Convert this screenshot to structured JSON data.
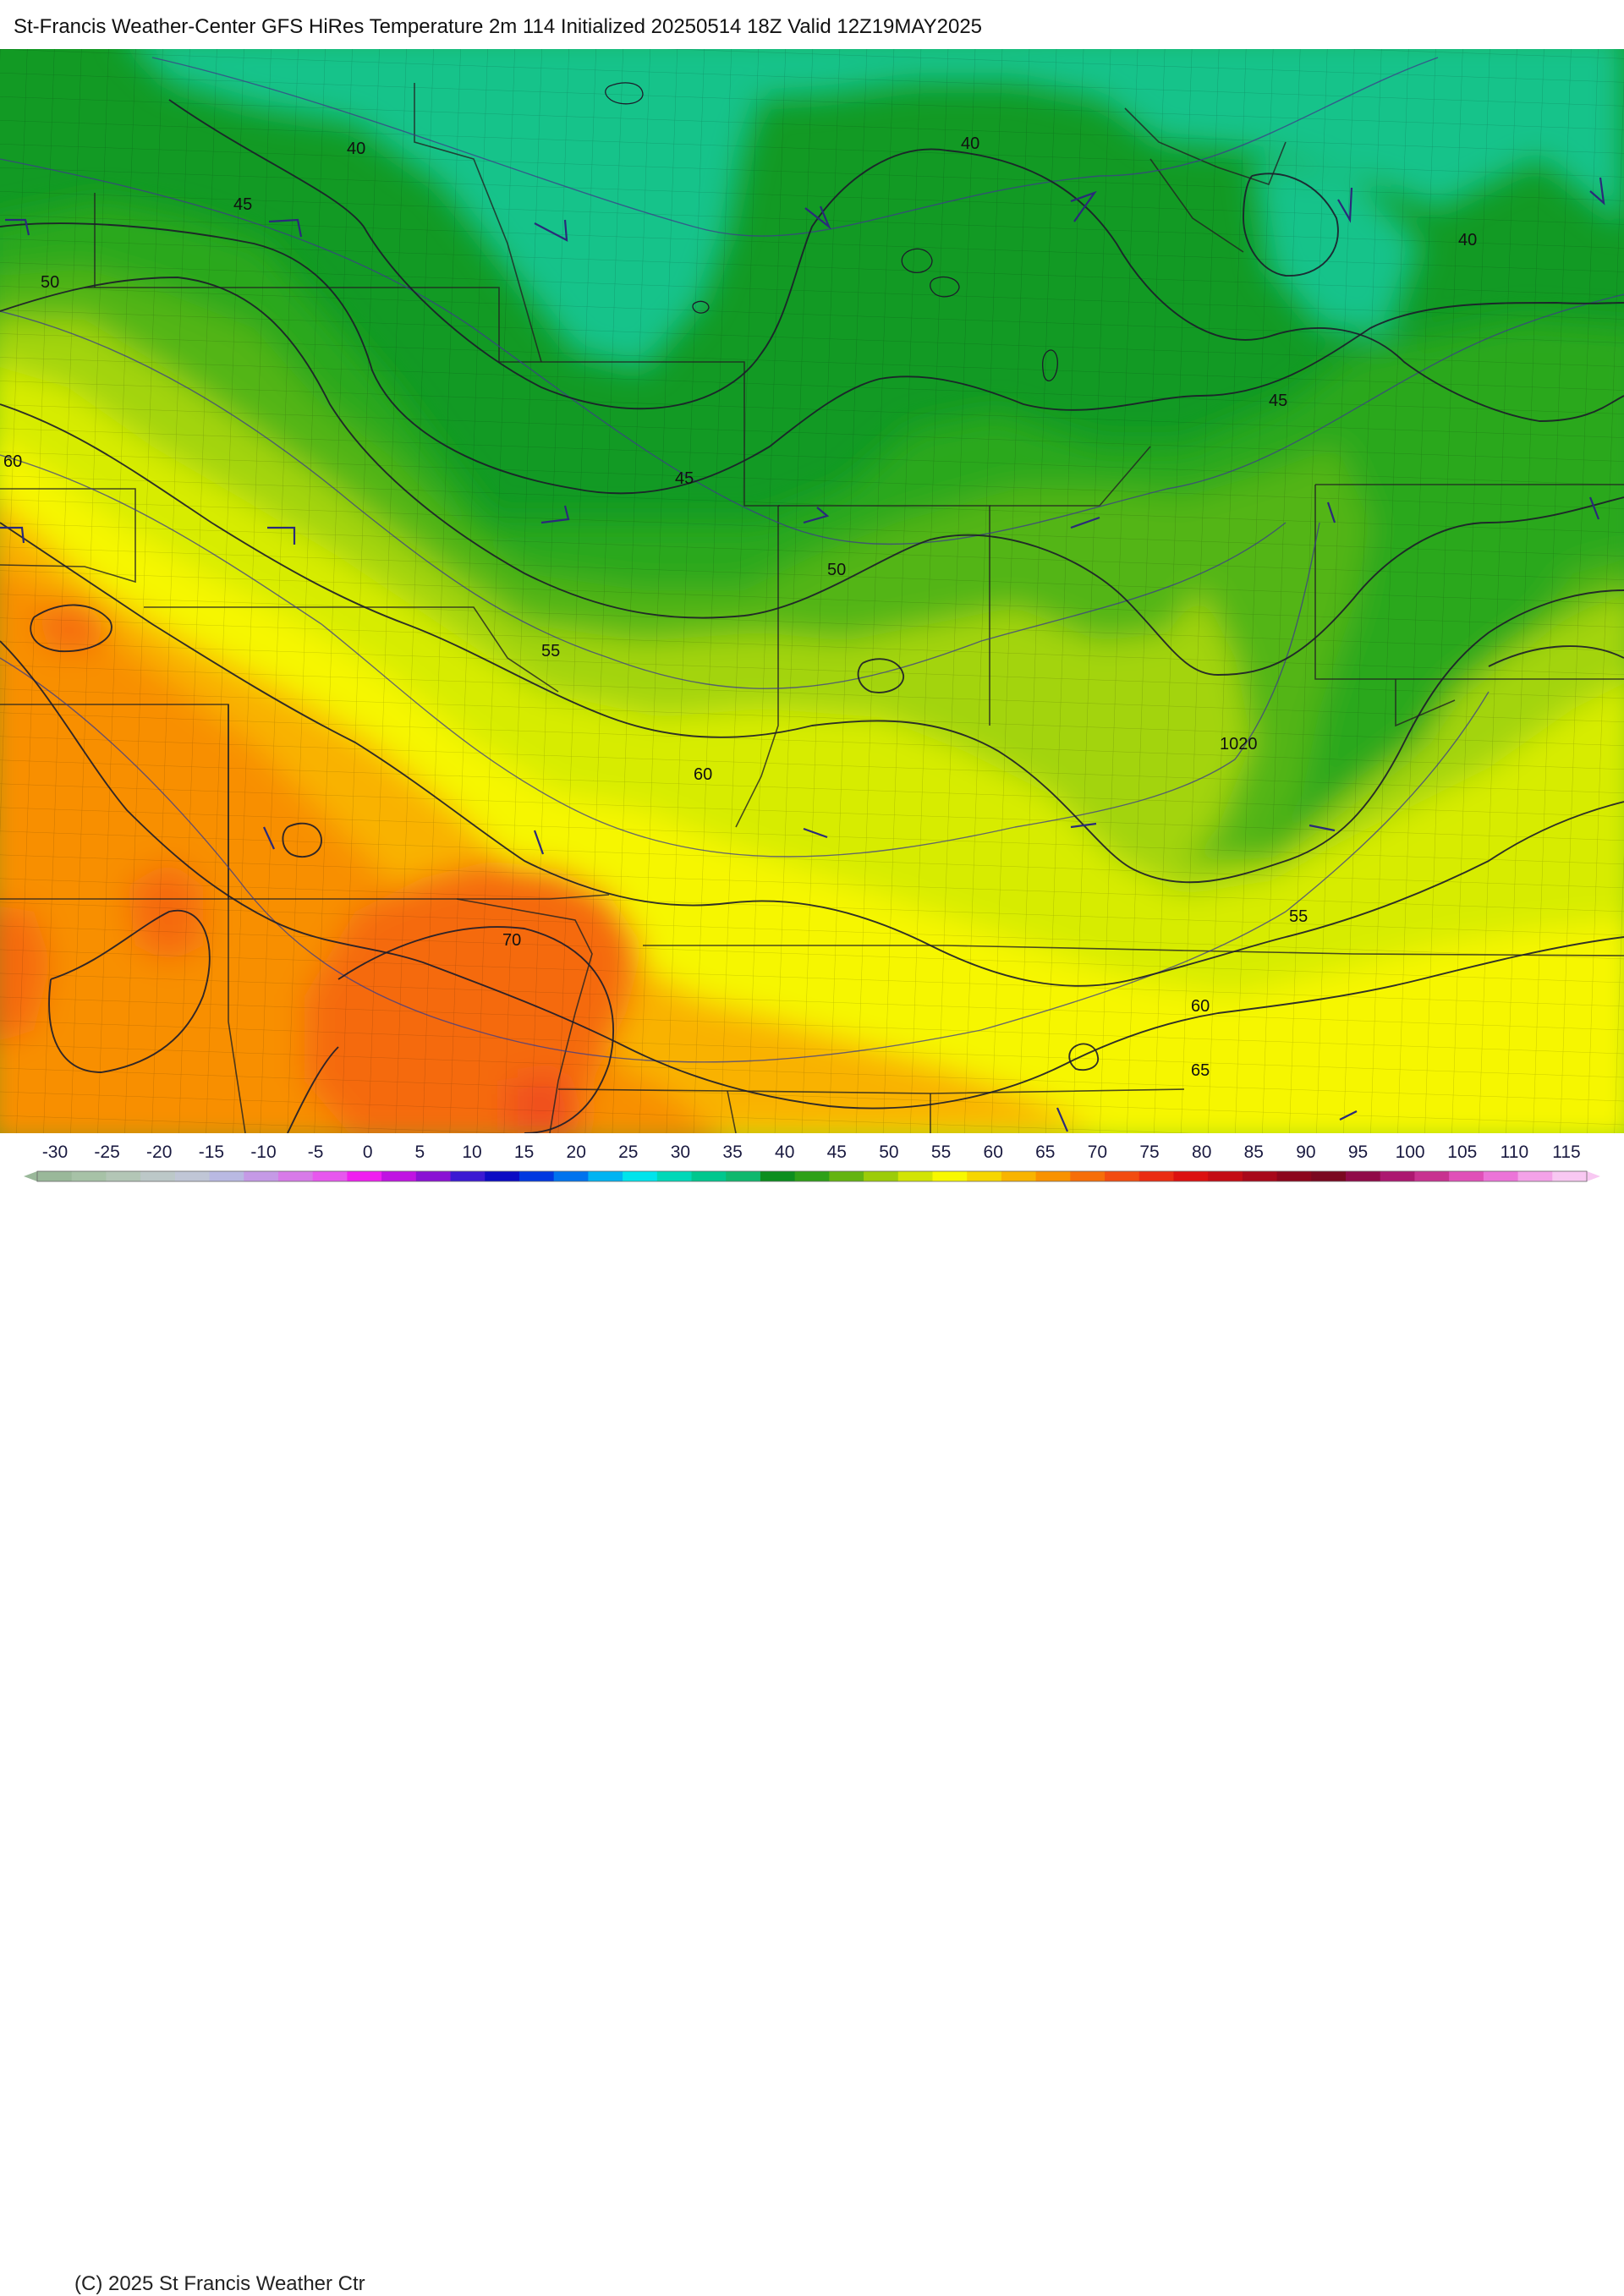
{
  "header": {
    "title": "St-Francis Weather-Center GFS HiRes Temperature 2m  114 Initialized 20250514 18Z Valid 12Z19MAY2025"
  },
  "map": {
    "isotherm_labels": [
      "40",
      "45",
      "50",
      "40",
      "40",
      "45",
      "45",
      "50",
      "55",
      "60",
      "60",
      "70",
      "55",
      "60",
      "65"
    ],
    "isobar_labels": [
      "1020"
    ],
    "colors": {
      "cold_teal": "#17c38a",
      "green_dark": "#129a24",
      "green": "#2ba81c",
      "green_mid": "#52b515",
      "yellow_green": "#a3d40a",
      "lime": "#d7ec05",
      "yellow": "#f6f600",
      "gold": "#f7d200",
      "orange_light": "#f9b200",
      "orange": "#f88f00",
      "orange_dark": "#f56a0f",
      "red_orange": "#f04f1a"
    }
  },
  "legend": {
    "copyright": "(C) 2025 St Francis Weather Ctr",
    "ticks": [
      "-30",
      "-25",
      "-20",
      "-15",
      "-10",
      "-5",
      "0",
      "5",
      "10",
      "15",
      "20",
      "25",
      "30",
      "35",
      "40",
      "45",
      "50",
      "55",
      "60",
      "65",
      "70",
      "75",
      "80",
      "85",
      "90",
      "95",
      "100",
      "105",
      "110",
      "115"
    ],
    "colors": [
      "#9ab89a",
      "#a7c2a7",
      "#b3c6b6",
      "#bcc8c8",
      "#c0c6d6",
      "#b9b9e2",
      "#c59ae6",
      "#d77ae8",
      "#e757ee",
      "#f01ef0",
      "#c014e2",
      "#8a12d4",
      "#3b1ad3",
      "#0c0cc4",
      "#0038e0",
      "#0073ee",
      "#00b4f2",
      "#00e4ec",
      "#00d8b8",
      "#00c78e",
      "#0fb86e",
      "#0c8e1e",
      "#2ea018",
      "#64b410",
      "#9ccc08",
      "#d2e404",
      "#f8f800",
      "#f6d600",
      "#f8b400",
      "#f89200",
      "#f66e08",
      "#f24c10",
      "#ea2c12",
      "#dc1010",
      "#c40c14",
      "#a8081a",
      "#8c061c",
      "#7a0820",
      "#900a48",
      "#ac1870",
      "#c83290",
      "#e050b8",
      "#ec74d8",
      "#f4a2e8",
      "#f8c8f2"
    ]
  }
}
